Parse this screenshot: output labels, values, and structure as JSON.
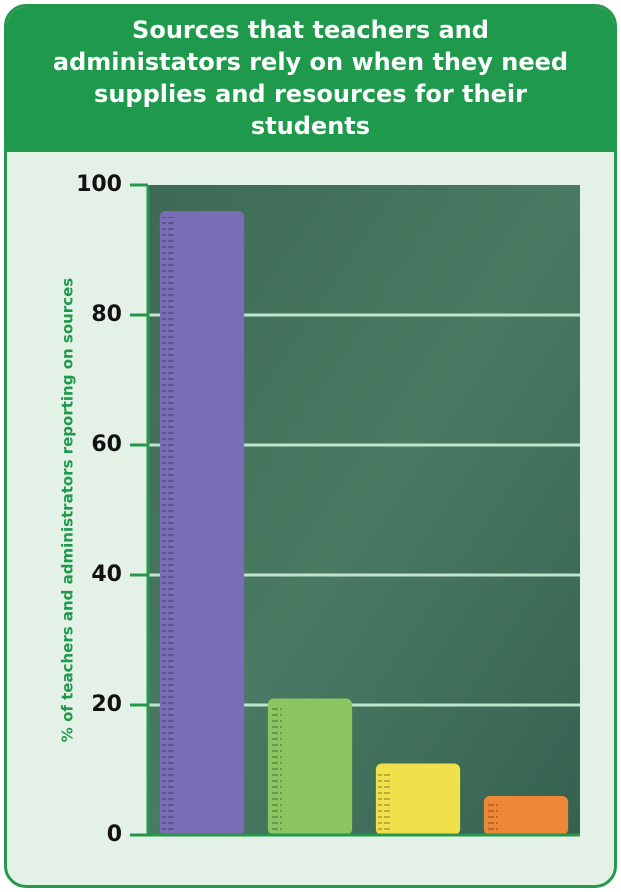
{
  "chart_data": {
    "type": "bar",
    "title": "Sources that teachers and administators rely on when they need supplies and resources for their students",
    "y_label": "% of teachers and administrators reporting on sources",
    "categories": [
      null,
      null,
      null,
      null
    ],
    "values": [
      96,
      21,
      11,
      6
    ],
    "colors": [
      "#7a6db6",
      "#8dc563",
      "#f0e04c",
      "#ee8838"
    ],
    "ylim": [
      0,
      100
    ],
    "yticks": [
      0,
      20,
      40,
      60,
      80,
      100
    ],
    "grid": true
  }
}
